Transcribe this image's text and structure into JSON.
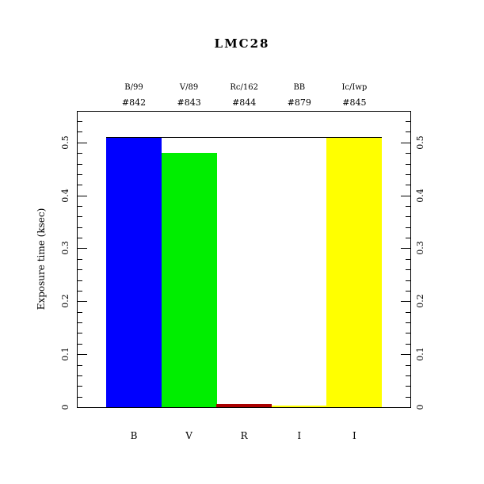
{
  "window": {
    "background_color": "#ffffff",
    "text_color": "#000000"
  },
  "chart_data": {
    "type": "bar",
    "title": "LMC28",
    "xlabel": "",
    "ylabel": "Exposure time (ksec)",
    "ylim": [
      0,
      0.558
    ],
    "yticks": [
      {
        "value": 0,
        "label": "0"
      },
      {
        "value": 0.1,
        "label": "0.1"
      },
      {
        "value": 0.2,
        "label": "0.2"
      },
      {
        "value": 0.3,
        "label": "0.3"
      },
      {
        "value": 0.4,
        "label": "0.4"
      },
      {
        "value": 0.5,
        "label": "0.5"
      }
    ],
    "minor_tick_step": 0.02,
    "minor_tick_max": 0.54,
    "grid": false,
    "legend": "none",
    "categories": [
      "B",
      "V",
      "R",
      "I",
      "I"
    ],
    "columns": [
      {
        "filter": "B/99",
        "number": "#842",
        "axis_label": "B",
        "value": 0.51,
        "color": "#0000ff"
      },
      {
        "filter": "V/89",
        "number": "#843",
        "axis_label": "V",
        "value": 0.48,
        "color": "#00ee00"
      },
      {
        "filter": "Rc/162",
        "number": "#844",
        "axis_label": "R",
        "value": 0.006,
        "color": "#aa0000"
      },
      {
        "filter": "BB",
        "number": "#879",
        "axis_label": "I",
        "value": 0.003,
        "color": "#ffff00"
      },
      {
        "filter": "Ic/Iwp",
        "number": "#845",
        "axis_label": "I",
        "value": 0.51,
        "color": "#ffff00"
      }
    ],
    "reference_line": {
      "value": 0.51,
      "color": "#000000"
    }
  }
}
